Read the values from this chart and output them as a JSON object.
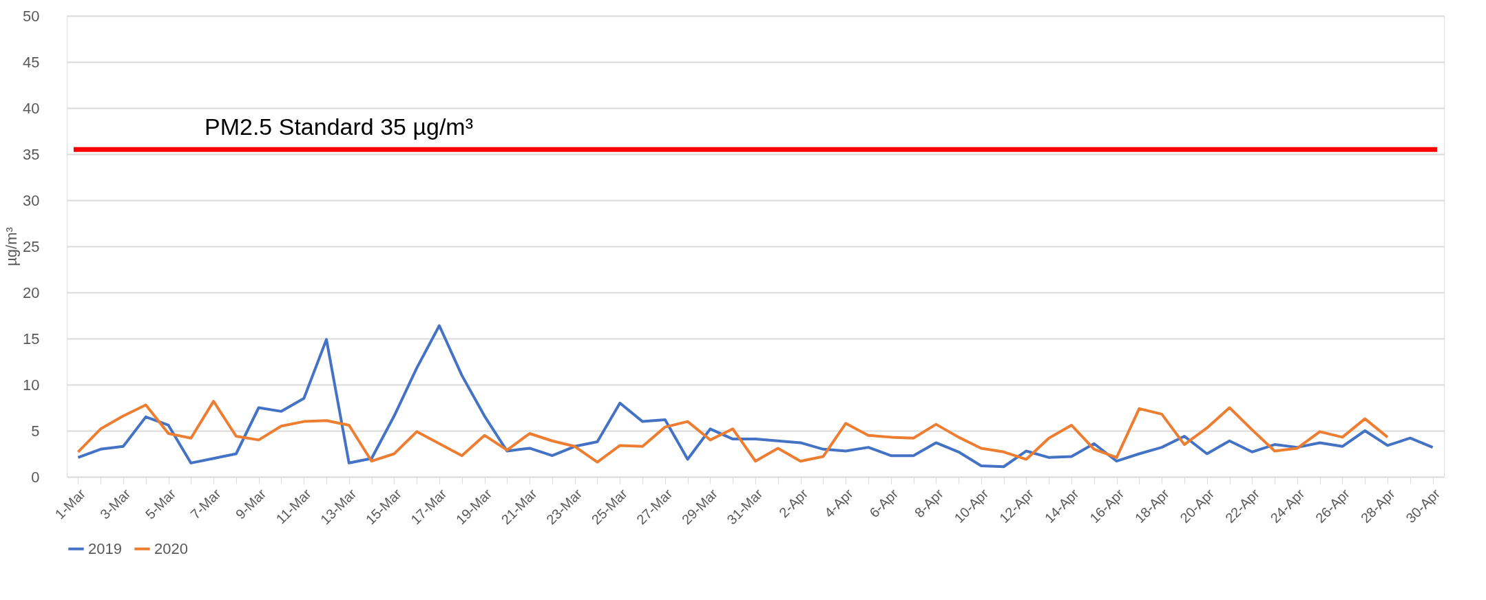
{
  "chart_data": {
    "type": "line",
    "ylabel": "µg/m³",
    "categories": [
      "1-Mar",
      null,
      "3-Mar",
      null,
      "5-Mar",
      null,
      "7-Mar",
      null,
      "9-Mar",
      null,
      "11-Mar",
      null,
      "13-Mar",
      null,
      "15-Mar",
      null,
      "17-Mar",
      null,
      "19-Mar",
      null,
      "21-Mar",
      null,
      "23-Mar",
      null,
      "25-Mar",
      null,
      "27-Mar",
      null,
      "29-Mar",
      null,
      "31-Mar",
      null,
      "2-Apr",
      null,
      "4-Apr",
      null,
      "6-Apr",
      null,
      "8-Apr",
      null,
      "10-Apr",
      null,
      "12-Apr",
      null,
      "14-Apr",
      null,
      "16-Apr",
      null,
      "18-Apr",
      null,
      "20-Apr",
      null,
      "22-Apr",
      null,
      "24-Apr",
      null,
      "26-Apr",
      null,
      "28-Apr",
      null,
      "30-Apr"
    ],
    "series": [
      {
        "name": "2019",
        "color": "#4472c4",
        "values": [
          2.1,
          3.0,
          3.3,
          6.5,
          5.6,
          1.5,
          2.0,
          2.5,
          7.5,
          7.1,
          8.5,
          14.9,
          1.5,
          2.0,
          6.6,
          11.8,
          16.4,
          11.0,
          6.6,
          2.8,
          3.1,
          2.3,
          3.3,
          3.8,
          8.0,
          6.0,
          6.2,
          1.9,
          5.2,
          4.1,
          4.1,
          3.9,
          3.7,
          3.0,
          2.8,
          3.2,
          2.3,
          2.3,
          3.7,
          2.7,
          1.2,
          1.1,
          2.8,
          2.1,
          2.2,
          3.6,
          1.7,
          2.5,
          3.2,
          4.4,
          2.5,
          3.9,
          2.7,
          3.5,
          3.2,
          3.7,
          3.3,
          5.0,
          3.4,
          4.2,
          3.2
        ]
      },
      {
        "name": "2020",
        "color": "#ed7d31",
        "values": [
          2.7,
          5.2,
          6.6,
          7.8,
          4.7,
          4.2,
          8.2,
          4.4,
          4.0,
          5.5,
          6.0,
          6.1,
          5.6,
          1.7,
          2.5,
          4.9,
          3.6,
          2.3,
          4.5,
          2.9,
          4.7,
          3.9,
          3.3,
          1.6,
          3.4,
          3.3,
          5.4,
          6.0,
          4.0,
          5.2,
          1.7,
          3.1,
          1.7,
          2.2,
          5.8,
          4.5,
          4.3,
          4.2,
          5.7,
          4.3,
          3.1,
          2.7,
          1.9,
          4.2,
          5.6,
          3.0,
          2.1,
          7.4,
          6.8,
          3.5,
          5.3,
          7.5,
          5.1,
          2.8,
          3.1,
          4.9,
          4.3,
          6.3,
          4.3,
          null,
          null
        ]
      }
    ],
    "ylim": [
      0,
      50
    ],
    "yticks": [
      0,
      5,
      10,
      15,
      20,
      25,
      30,
      35,
      40,
      45,
      50
    ],
    "grid": "y",
    "legend": "bottom",
    "marker": "none",
    "line_style": "solid",
    "ref_lines": [
      {
        "axis": "y",
        "value": 35.5,
        "label": "PM2.5 Standard 35 µg/m³",
        "color": "#ff0000",
        "line_style": "solid"
      }
    ]
  }
}
